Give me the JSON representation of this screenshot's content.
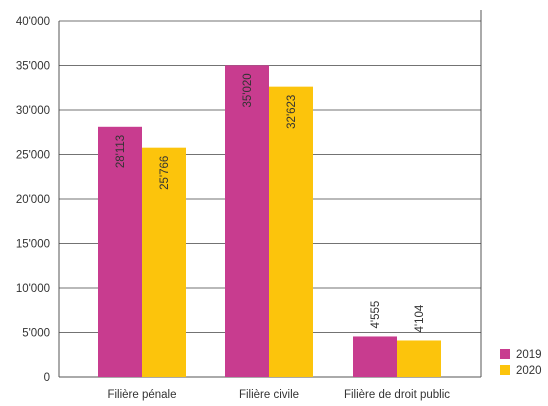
{
  "colors": {
    "series_2019": "#c83c8f",
    "series_2020": "#fcc40c",
    "axis": "#555555",
    "grid": "#444444"
  },
  "chart_data": {
    "type": "bar",
    "categories": [
      "Filière pénale",
      "Filière civile",
      "Filière de droit public"
    ],
    "series": [
      {
        "name": "2019",
        "values": [
          28113,
          35020,
          4555
        ],
        "labels": [
          "28'113",
          "35'020",
          "4'555"
        ]
      },
      {
        "name": "2020",
        "values": [
          25766,
          32623,
          4104
        ],
        "labels": [
          "25'766",
          "32'623",
          "4'104"
        ]
      }
    ],
    "yticks": [
      0,
      5000,
      10000,
      15000,
      20000,
      25000,
      30000,
      35000,
      40000
    ],
    "ytick_labels": [
      "0",
      "5'000",
      "10'000",
      "15'000",
      "20'000",
      "25'000",
      "30'000",
      "35'000",
      "40'000"
    ],
    "ylim": [
      0,
      40000
    ],
    "grid": false,
    "legend_position": "bottom-right",
    "title": "",
    "xlabel": "",
    "ylabel": ""
  }
}
